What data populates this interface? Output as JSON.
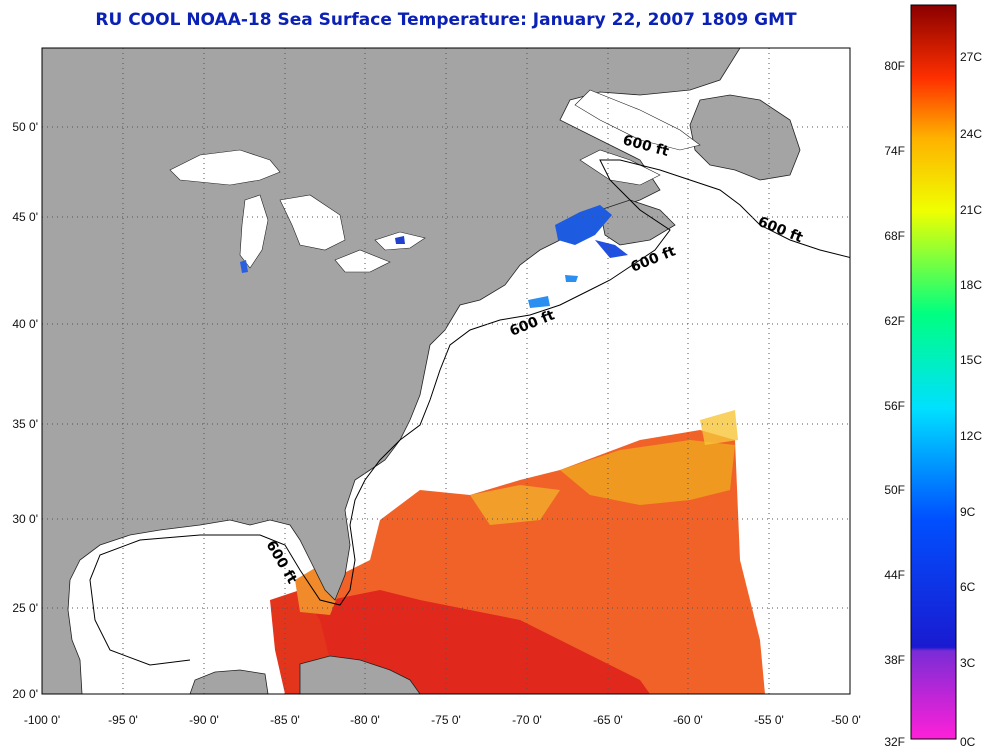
{
  "title": "RU COOL  NOAA-18  Sea Surface Temperature:  January 22, 2007 1809 GMT",
  "axes": {
    "lat_labels": [
      "50 0'",
      "45 0'",
      "40 0'",
      "35 0'",
      "30 0'",
      "25 0'",
      "20 0'"
    ],
    "lon_labels": [
      "-100 0'",
      "-95 0'",
      "-90 0'",
      "-85 0'",
      "-80 0'",
      "-75 0'",
      "-70 0'",
      "-65 0'",
      "-60 0'",
      "-55 0'",
      "-50 0'"
    ],
    "grid": true
  },
  "isobath_label": "600 ft",
  "colorbar": {
    "fahrenheit_labels": [
      "80F",
      "74F",
      "68F",
      "62F",
      "56F",
      "50F",
      "44F",
      "38F",
      "32F"
    ],
    "celsius_labels": [
      "27C",
      "24C",
      "21C",
      "18C",
      "15C",
      "12C",
      "9C",
      "6C",
      "3C",
      "0C"
    ]
  },
  "colors": {
    "title": "#0b21b5",
    "land": "#a4a4a4",
    "water": "#ffffff",
    "grid": "#555555"
  }
}
